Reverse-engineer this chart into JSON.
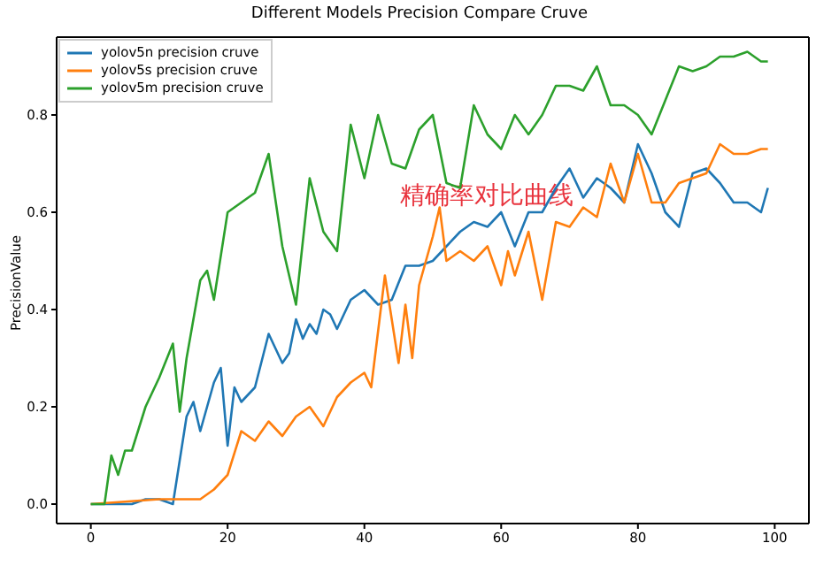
{
  "chart_data": {
    "type": "line",
    "title": "Different Models Precision Compare Cruve",
    "ylabel": "PrecisionValue",
    "annotations": [
      "精确率对比曲线"
    ],
    "xlim": [
      -5,
      105
    ],
    "ylim": [
      -0.04,
      0.96
    ],
    "xticks": [
      0,
      20,
      40,
      60,
      80,
      100
    ],
    "yticks": [
      {
        "value": 0,
        "label": "0.0"
      },
      {
        "value": 0.2,
        "label": "0.2"
      },
      {
        "value": 0.4,
        "label": "0.4"
      },
      {
        "value": 0.6,
        "label": "0.6"
      },
      {
        "value": 0.8,
        "label": "0.8"
      }
    ],
    "grid": false,
    "legend": "top left",
    "marker": "none",
    "line_style": "solid",
    "series": [
      {
        "name": "yolov5n precision cruve",
        "color": "#1f77b4",
        "x": [
          0,
          2,
          4,
          6,
          8,
          10,
          12,
          13,
          14,
          15,
          16,
          18,
          19,
          20,
          21,
          22,
          24,
          26,
          28,
          29,
          30,
          31,
          32,
          33,
          34,
          35,
          36,
          38,
          40,
          42,
          44,
          46,
          48,
          50,
          52,
          54,
          56,
          58,
          60,
          62,
          64,
          66,
          68,
          70,
          72,
          74,
          76,
          78,
          80,
          82,
          84,
          86,
          88,
          90,
          92,
          94,
          96,
          98,
          99
        ],
        "values": [
          0,
          0,
          0,
          0,
          0.01,
          0.01,
          0,
          0.09,
          0.18,
          0.21,
          0.15,
          0.25,
          0.28,
          0.12,
          0.24,
          0.21,
          0.24,
          0.35,
          0.29,
          0.31,
          0.38,
          0.34,
          0.37,
          0.35,
          0.4,
          0.39,
          0.36,
          0.42,
          0.44,
          0.41,
          0.42,
          0.49,
          0.49,
          0.5,
          0.53,
          0.56,
          0.58,
          0.57,
          0.6,
          0.53,
          0.6,
          0.6,
          0.65,
          0.69,
          0.63,
          0.67,
          0.65,
          0.62,
          0.74,
          0.68,
          0.6,
          0.57,
          0.68,
          0.69,
          0.66,
          0.62,
          0.62,
          0.6,
          0.65
        ]
      },
      {
        "name": "yolov5s precision cruve",
        "color": "#ff7f0e",
        "x": [
          0,
          10,
          16,
          18,
          20,
          22,
          24,
          26,
          28,
          30,
          32,
          34,
          36,
          38,
          40,
          41,
          43,
          45,
          46,
          47,
          48,
          50,
          51,
          52,
          54,
          56,
          58,
          60,
          61,
          62,
          64,
          66,
          68,
          70,
          72,
          74,
          76,
          78,
          80,
          82,
          84,
          86,
          88,
          90,
          92,
          94,
          96,
          98,
          99
        ],
        "values": [
          0,
          0.01,
          0.01,
          0.03,
          0.06,
          0.15,
          0.13,
          0.17,
          0.14,
          0.18,
          0.2,
          0.16,
          0.22,
          0.25,
          0.27,
          0.24,
          0.47,
          0.29,
          0.41,
          0.3,
          0.45,
          0.55,
          0.61,
          0.5,
          0.52,
          0.5,
          0.53,
          0.45,
          0.52,
          0.47,
          0.56,
          0.42,
          0.58,
          0.57,
          0.61,
          0.59,
          0.7,
          0.62,
          0.72,
          0.62,
          0.62,
          0.66,
          0.67,
          0.68,
          0.74,
          0.72,
          0.72,
          0.73,
          0.73
        ]
      },
      {
        "name": "yolov5m precision cruve",
        "color": "#2ca02c",
        "x": [
          0,
          2,
          3,
          4,
          5,
          6,
          8,
          10,
          12,
          13,
          14,
          16,
          17,
          18,
          20,
          22,
          24,
          26,
          28,
          30,
          32,
          34,
          36,
          38,
          40,
          42,
          44,
          46,
          48,
          50,
          52,
          54,
          56,
          58,
          60,
          62,
          64,
          66,
          68,
          70,
          72,
          74,
          76,
          78,
          80,
          82,
          84,
          86,
          88,
          90,
          92,
          94,
          96,
          98,
          99
        ],
        "values": [
          0,
          0,
          0.1,
          0.06,
          0.11,
          0.11,
          0.2,
          0.26,
          0.33,
          0.19,
          0.3,
          0.46,
          0.48,
          0.42,
          0.6,
          0.62,
          0.64,
          0.72,
          0.53,
          0.41,
          0.67,
          0.56,
          0.52,
          0.78,
          0.67,
          0.8,
          0.7,
          0.69,
          0.77,
          0.8,
          0.66,
          0.65,
          0.82,
          0.76,
          0.73,
          0.8,
          0.76,
          0.8,
          0.86,
          0.86,
          0.85,
          0.9,
          0.82,
          0.82,
          0.8,
          0.76,
          0.83,
          0.9,
          0.89,
          0.9,
          0.92,
          0.92,
          0.93,
          0.91,
          0.91
        ]
      }
    ]
  }
}
